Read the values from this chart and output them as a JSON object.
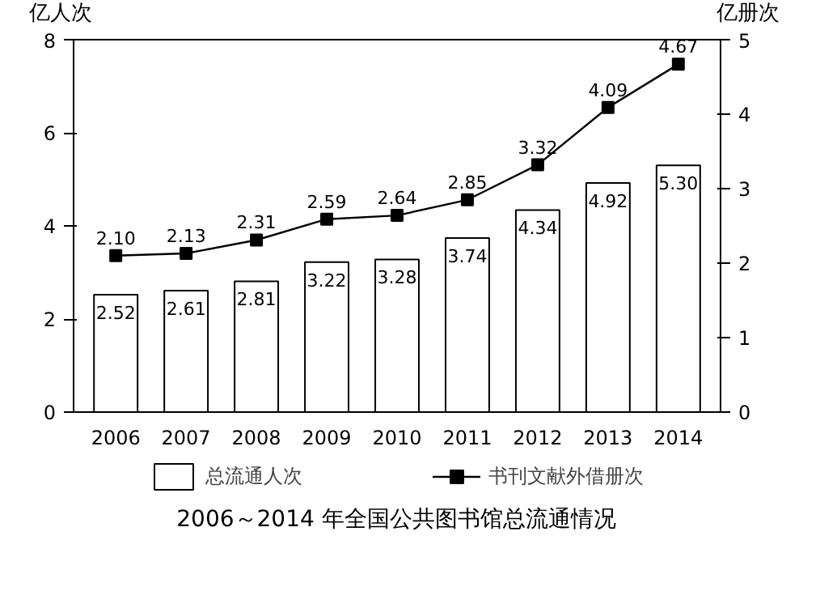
{
  "chart_data": {
    "type": "bar",
    "title": "2006～2014 年全国公共图书馆总流通情况",
    "ylabel": "亿人次",
    "y2label": "亿册次",
    "categories": [
      "2006",
      "2007",
      "2008",
      "2009",
      "2010",
      "2011",
      "2012",
      "2013",
      "2014"
    ],
    "series": [
      {
        "name": "总流通人次",
        "color": "#ffffff",
        "values": [
          2.52,
          2.61,
          2.81,
          3.22,
          3.28,
          3.74,
          4.34,
          4.92,
          5.3
        ],
        "value_labels": [
          "2.52",
          "2.61",
          "2.81",
          "3.22",
          "3.28",
          "3.74",
          "4.34",
          "4.92",
          "5.30"
        ]
      },
      {
        "name": "书刊文献外借册次",
        "type": "line",
        "axis": "y2",
        "marker": "square",
        "color": "#000000",
        "values": [
          2.1,
          2.13,
          2.31,
          2.59,
          2.64,
          2.85,
          3.32,
          4.09,
          4.67
        ],
        "value_labels": [
          "2.10",
          "2.13",
          "2.31",
          "2.59",
          "2.64",
          "2.85",
          "3.32",
          "4.09",
          "4.67"
        ]
      }
    ],
    "ylim": [
      0,
      8
    ],
    "yticks": [
      0,
      2,
      4,
      6,
      8
    ],
    "y2lim": [
      0,
      5
    ],
    "y2ticks": [
      0,
      1,
      2,
      3,
      4,
      5
    ],
    "grid": false,
    "legend": "bottom"
  }
}
